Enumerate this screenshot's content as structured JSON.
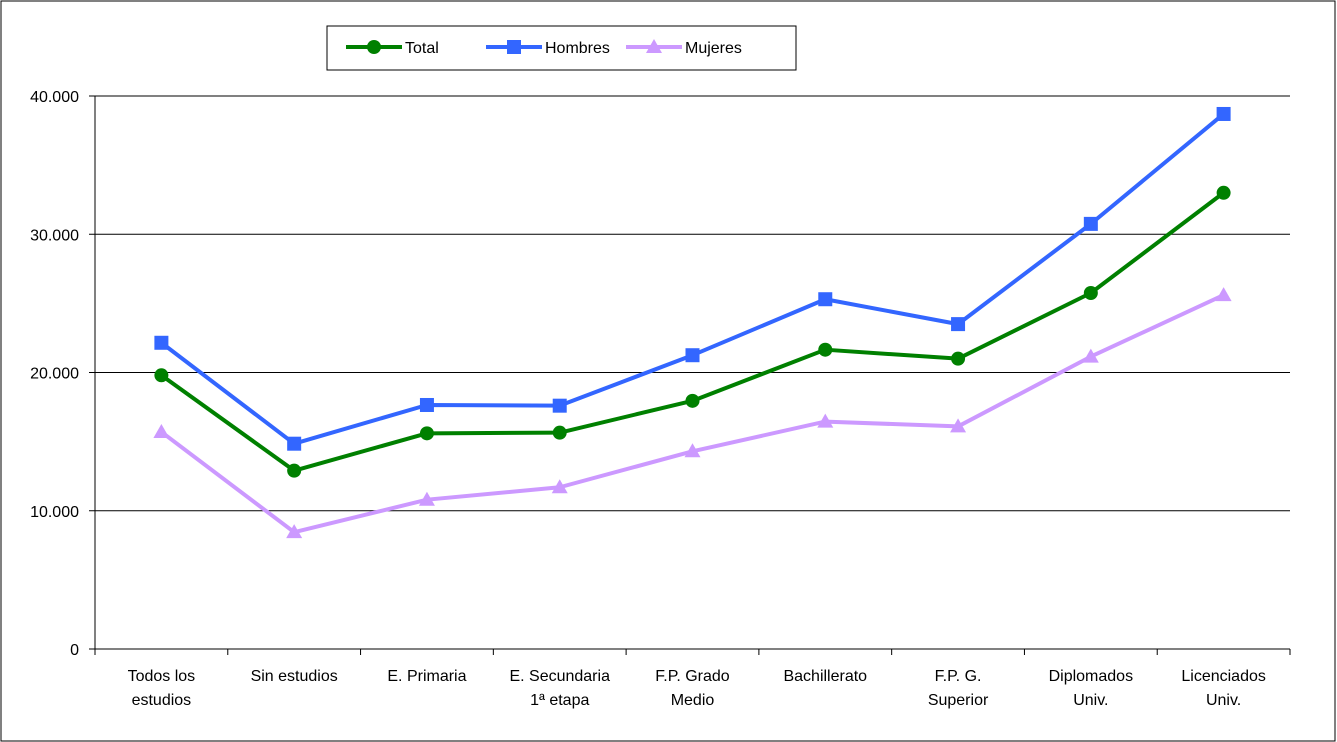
{
  "chart_data": {
    "type": "line",
    "categories": [
      [
        "Todos los",
        "estudios"
      ],
      [
        "Sin estudios"
      ],
      [
        "E. Primaria"
      ],
      [
        "E. Secundaria",
        "1ª etapa"
      ],
      [
        "F.P. Grado",
        "Medio"
      ],
      [
        "Bachillerato"
      ],
      [
        "F.P. G.",
        "Superior"
      ],
      [
        "Diplomados",
        "Univ."
      ],
      [
        "Licenciados",
        "Univ."
      ]
    ],
    "yticks": [
      0,
      10000,
      20000,
      30000,
      40000
    ],
    "ytick_labels": [
      "0",
      "10.000",
      "20.000",
      "30.000",
      "40.000"
    ],
    "ylim": [
      0,
      40000
    ],
    "grid": true,
    "legend_position": "top",
    "series": [
      {
        "name": "Total",
        "color": "#008000",
        "marker": "circle",
        "values": [
          19800,
          12900,
          15600,
          15650,
          17950,
          21650,
          21000,
          25750,
          33000
        ]
      },
      {
        "name": "Hombres",
        "color": "#3366ff",
        "marker": "square",
        "values": [
          22150,
          14850,
          17650,
          17600,
          21250,
          25300,
          23500,
          30750,
          38700
        ]
      },
      {
        "name": "Mujeres",
        "color": "#cc99ff",
        "marker": "triangle",
        "values": [
          15700,
          8450,
          10800,
          11700,
          14300,
          16450,
          16100,
          21150,
          25600
        ]
      }
    ]
  }
}
